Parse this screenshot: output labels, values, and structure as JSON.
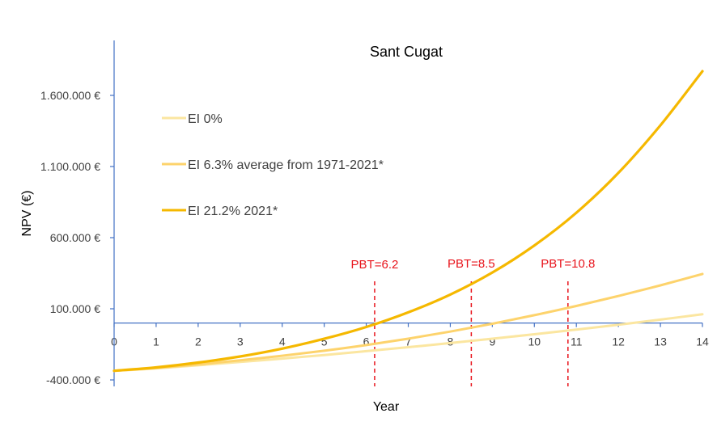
{
  "chart_data": {
    "type": "line",
    "title": "Sant Cugat",
    "xlabel": "Year",
    "ylabel": "NPV (€)",
    "xlim": [
      0,
      14
    ],
    "ylim": [
      -400000,
      1900000
    ],
    "x_ticks": [
      "0",
      "1",
      "2",
      "3",
      "4",
      "5",
      "6",
      "7",
      "8",
      "9",
      "10",
      "11",
      "12",
      "13",
      "14"
    ],
    "y_ticks": [
      {
        "value": -400000,
        "label": "-400.000 €"
      },
      {
        "value": 100000,
        "label": "100.000 €"
      },
      {
        "value": 600000,
        "label": "600.000 €"
      },
      {
        "value": 1100000,
        "label": "1.100.000 €"
      },
      {
        "value": 1600000,
        "label": "1.600.000 €"
      }
    ],
    "legend_position": "left",
    "series": [
      {
        "name": "EI 0%",
        "color": "#fbe6a0",
        "x": [
          0,
          1,
          2,
          3,
          4,
          5,
          6,
          7,
          8,
          9,
          10,
          11,
          12,
          13,
          14
        ],
        "y": [
          -336000,
          -319000,
          -297000,
          -274000,
          -250000,
          -225000,
          -198000,
          -170000,
          -141000,
          -110000,
          -79000,
          -46000,
          -12000,
          24000,
          62000
        ]
      },
      {
        "name": "EI 6.3% average from 1971-2021*",
        "color": "#fdd36c",
        "x": [
          0,
          1,
          2,
          3,
          4,
          5,
          6,
          7,
          8,
          9,
          10,
          11,
          12,
          13,
          14
        ],
        "y": [
          -336000,
          -316000,
          -291000,
          -262000,
          -230000,
          -195000,
          -155000,
          -110000,
          -60000,
          -5000,
          55000,
          120000,
          190000,
          265000,
          345000
        ]
      },
      {
        "name": "EI 21.2% 2021*",
        "color": "#f5b800",
        "x": [
          0,
          1,
          2,
          3,
          4,
          5,
          6,
          7,
          8,
          9,
          10,
          11,
          12,
          13,
          14
        ],
        "y": [
          -336000,
          -312000,
          -278000,
          -235000,
          -180000,
          -111000,
          -28000,
          75000,
          200000,
          355000,
          545000,
          775000,
          1055000,
          1390000,
          1770000
        ]
      }
    ],
    "annotations": [
      {
        "x": 6.2,
        "label": "PBT=6.2"
      },
      {
        "x": 8.5,
        "label": "PBT=8.5"
      },
      {
        "x": 10.8,
        "label": "PBT=10.8"
      }
    ],
    "annotation_color": "#e8141c"
  }
}
